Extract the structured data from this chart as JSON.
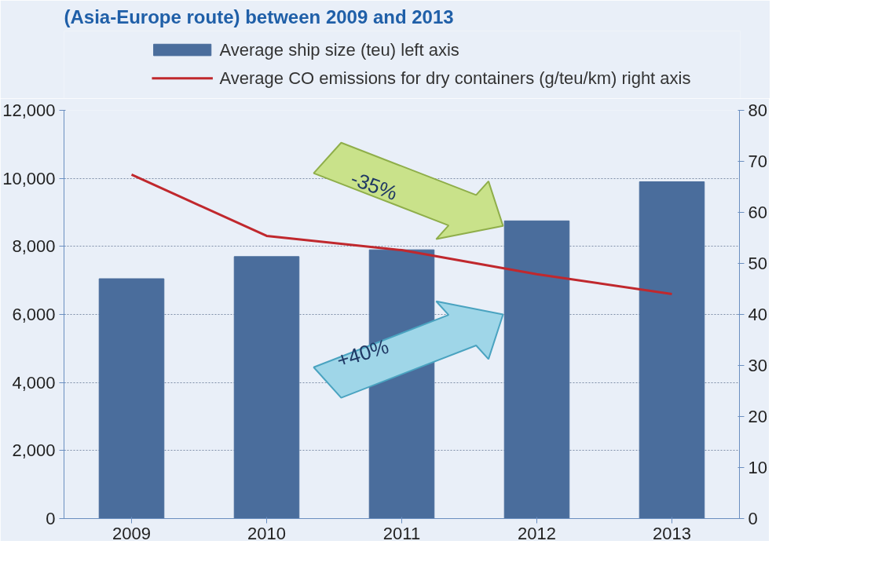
{
  "chart_data": {
    "type": "bar",
    "title": "(Asia-Europe route) between 2009 and 2013",
    "categories": [
      "2009",
      "2010",
      "2011",
      "2012",
      "2013"
    ],
    "series": [
      {
        "name": "Average ship size (teu) left axis",
        "color": "#4a6d9c",
        "values": [
          7050,
          7700,
          7900,
          8750,
          9900
        ]
      },
      {
        "name": "Average CO emissions for dry containers (g/teu/km) right axis",
        "color": "#c0282d",
        "type": "line",
        "axis": "y2",
        "values": [
          67.4,
          55.4,
          52.6,
          47.9,
          44.0
        ]
      }
    ],
    "ylim": [
      0,
      12000
    ],
    "yticks": [
      {
        "value": 0,
        "label": "0"
      },
      {
        "value": 2000,
        "label": "2,000"
      },
      {
        "value": 4000,
        "label": "4,000"
      },
      {
        "value": 6000,
        "label": "6,000"
      },
      {
        "value": 8000,
        "label": "8,000"
      },
      {
        "value": 10000,
        "label": "10,000"
      },
      {
        "value": 12000,
        "label": "12,000"
      }
    ],
    "y2lim": [
      0,
      80
    ],
    "y2ticks": [
      0,
      10,
      20,
      30,
      40,
      50,
      60,
      70,
      80
    ],
    "annotations": [
      "-35%",
      "+40%"
    ],
    "grid": "y",
    "legend": "top",
    "line_style": "solid"
  }
}
